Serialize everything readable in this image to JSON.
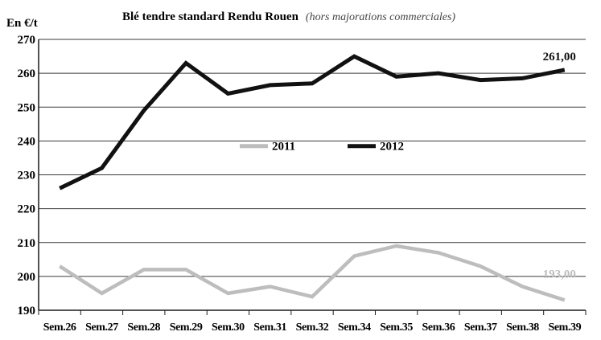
{
  "chart_data": {
    "type": "line",
    "title": "Blé tendre standard Rendu Rouen",
    "subtitle": "(hors majorations commerciales)",
    "ylabel": "En €/t",
    "categories": [
      "Sem.26",
      "Sem.27",
      "Sem.28",
      "Sem.29",
      "Sem.30",
      "Sem.31",
      "Sem.32",
      "Sem.34",
      "Sem.35",
      "Sem.36",
      "Sem.37",
      "Sem.38",
      "Sem.39"
    ],
    "ylim": [
      190,
      270
    ],
    "yticks": [
      "190",
      "200",
      "210",
      "220",
      "230",
      "240",
      "250",
      "260",
      "270"
    ],
    "grid": "horizontal",
    "legend_position": "center",
    "series": [
      {
        "name": "2011",
        "color": "#bdbdbd",
        "values": [
          203,
          195,
          202,
          202,
          195,
          197,
          194,
          206,
          209,
          207,
          203,
          197,
          193
        ],
        "end_label": "193,00"
      },
      {
        "name": "2012",
        "color": "#111111",
        "values": [
          226,
          232,
          249,
          263,
          254,
          256.5,
          257,
          265,
          259,
          260,
          258,
          258.5,
          261
        ],
        "end_label": "261,00"
      }
    ]
  }
}
